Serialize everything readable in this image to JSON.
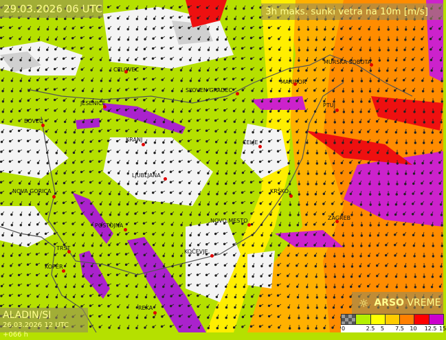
{
  "header": {
    "date": "29.03.2026 06 UTC",
    "title": "3h maks. sunki vetra na 10m [m/s]"
  },
  "model": {
    "name": "ALADIN/SI",
    "run": "26.03.2026 12 UTC +066 h"
  },
  "brand": {
    "icon": "sun-wind-icon",
    "bold": "ARSO",
    "light": "VREME"
  },
  "legend": {
    "colors": [
      "#808080",
      "#b5f000",
      "#ffff00",
      "#ffcc00",
      "#ff8000",
      "#ff0000",
      "#cc00cc"
    ],
    "ticks": [
      "0",
      "2.5",
      "5",
      "7.5",
      "10",
      "12.5",
      "15"
    ]
  },
  "cities": [
    {
      "name": "CELOVEC"
    },
    {
      "name": "SLOVEN GRADEC"
    },
    {
      "name": "MARIBOR"
    },
    {
      "name": "MURSKA SOBOTA"
    },
    {
      "name": "PTUJ"
    },
    {
      "name": "JESENICE"
    },
    {
      "name": "BOVEC"
    },
    {
      "name": "KRANJ"
    },
    {
      "name": "CELJE"
    },
    {
      "name": "LJUBLJANA"
    },
    {
      "name": "KRŠKO"
    },
    {
      "name": "NOVA GORICA"
    },
    {
      "name": "POSTOJNA"
    },
    {
      "name": "NOVO MESTO"
    },
    {
      "name": "ZAGREB"
    },
    {
      "name": "KOČEVJE"
    },
    {
      "name": "TRST"
    },
    {
      "name": "KOPER"
    },
    {
      "name": "REKA"
    }
  ]
}
